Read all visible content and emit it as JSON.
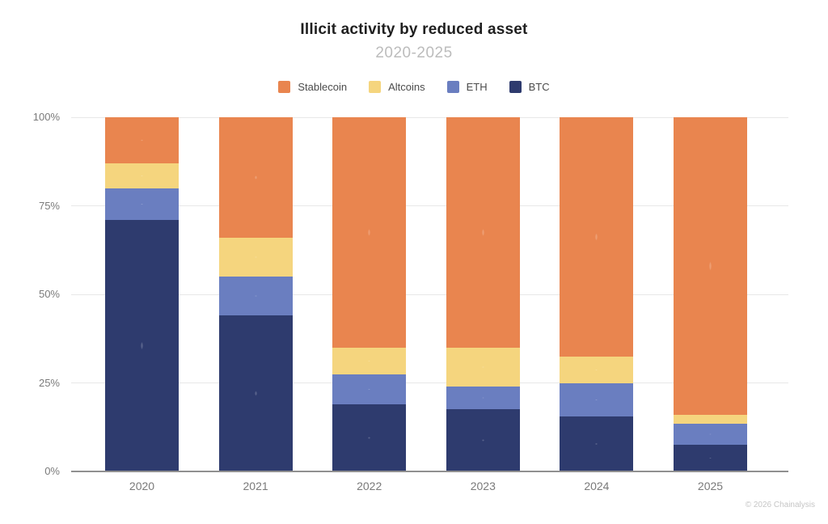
{
  "header": {
    "title": "Illicit activity by reduced asset",
    "subtitle": "2020-2025"
  },
  "footer": {
    "credit": "© 2026 Chainalysis"
  },
  "chart_data": {
    "type": "bar",
    "stacked": true,
    "percent": true,
    "title": "Illicit activity by reduced asset",
    "subtitle": "2020-2025",
    "categories": [
      "2020",
      "2021",
      "2022",
      "2023",
      "2024",
      "2025"
    ],
    "series": [
      {
        "name": "BTC",
        "color": "#2E3B6E",
        "values": [
          71,
          44,
          19,
          17.5,
          15.5,
          7.5
        ]
      },
      {
        "name": "ETH",
        "color": "#6A7EC0",
        "values": [
          9,
          11,
          8.5,
          6.5,
          9.5,
          6.0
        ]
      },
      {
        "name": "Altcoins",
        "color": "#F5D57E",
        "values": [
          7,
          11,
          7.5,
          11,
          7.5,
          2.5
        ]
      },
      {
        "name": "Stablecoin",
        "color": "#E9854F",
        "values": [
          13,
          34,
          65,
          65,
          67.5,
          84
        ]
      }
    ],
    "legend_order": [
      "Stablecoin",
      "Altcoins",
      "ETH",
      "BTC"
    ],
    "legend_position": "top",
    "yticks": [
      "0%",
      "25%",
      "50%",
      "75%",
      "100%"
    ],
    "ytick_values": [
      0,
      25,
      50,
      75,
      100
    ],
    "ylim": [
      0,
      100
    ],
    "grid": true,
    "colors": {
      "grid": "#E8E8E8",
      "axis": "#909090",
      "tick_text": "#7A7A7A",
      "title_text": "#1F1F1F",
      "subtitle_text": "#BCBCBC"
    }
  }
}
